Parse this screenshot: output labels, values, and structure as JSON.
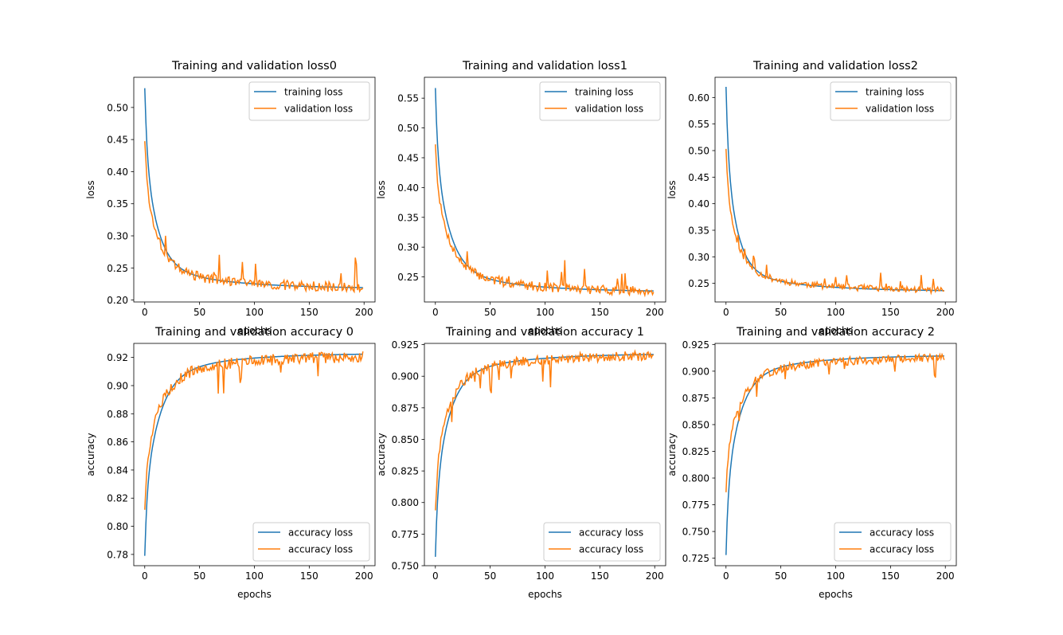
{
  "chart_data": [
    {
      "type": "line",
      "title": "Training and validation loss0",
      "xlabel": "epochs",
      "ylabel": "loss",
      "xlim": [
        -10,
        210
      ],
      "ylim": [
        0.197,
        0.547
      ],
      "xticks": [
        0,
        50,
        100,
        150,
        200
      ],
      "yticks": [
        0.2,
        0.25,
        0.3,
        0.35,
        0.4,
        0.45,
        0.5
      ],
      "ytick_decimals": 2,
      "legend_position": "top-right",
      "series": [
        {
          "name": "training loss",
          "color": "#1f77b4",
          "start": 0.53,
          "end": 0.218,
          "tau": 11,
          "bias": 0.038,
          "noise": 0
        },
        {
          "name": "validation loss",
          "color": "#ff7f0e",
          "start": 0.45,
          "end": 0.218,
          "tau": 11,
          "bias": 0.04,
          "noise": 0.008,
          "seed": 3
        }
      ]
    },
    {
      "type": "line",
      "title": "Training and validation loss1",
      "xlabel": "epochs",
      "ylabel": "loss",
      "xlim": [
        -10,
        210
      ],
      "ylim": [
        0.208,
        0.585
      ],
      "xticks": [
        0,
        50,
        100,
        150,
        200
      ],
      "yticks": [
        0.25,
        0.3,
        0.35,
        0.4,
        0.45,
        0.5,
        0.55
      ],
      "ytick_decimals": 2,
      "legend_position": "top-right",
      "series": [
        {
          "name": "training loss",
          "color": "#1f77b4",
          "start": 0.567,
          "end": 0.225,
          "tau": 12,
          "bias": 0.042,
          "noise": 0
        },
        {
          "name": "validation loss",
          "color": "#ff7f0e",
          "start": 0.475,
          "end": 0.225,
          "tau": 12,
          "bias": 0.044,
          "noise": 0.008,
          "seed": 7
        }
      ]
    },
    {
      "type": "line",
      "title": "Training and validation loss2",
      "xlabel": "epochs",
      "ylabel": "loss",
      "xlim": [
        -10,
        210
      ],
      "ylim": [
        0.215,
        0.638
      ],
      "xticks": [
        0,
        50,
        100,
        150,
        200
      ],
      "yticks": [
        0.25,
        0.3,
        0.35,
        0.4,
        0.45,
        0.5,
        0.55,
        0.6
      ],
      "ytick_decimals": 2,
      "legend_position": "top-right",
      "series": [
        {
          "name": "training loss",
          "color": "#1f77b4",
          "start": 0.62,
          "end": 0.235,
          "tau": 10,
          "bias": 0.04,
          "noise": 0
        },
        {
          "name": "validation loss",
          "color": "#ff7f0e",
          "start": 0.505,
          "end": 0.236,
          "tau": 10,
          "bias": 0.042,
          "noise": 0.006,
          "seed": 11
        }
      ]
    },
    {
      "type": "line",
      "title": "Training and validation accuracy 0",
      "xlabel": "epochs",
      "ylabel": "accuracy",
      "xlim": [
        -10,
        210
      ],
      "ylim": [
        0.772,
        0.93
      ],
      "xticks": [
        0,
        50,
        100,
        150,
        200
      ],
      "yticks": [
        0.78,
        0.8,
        0.82,
        0.84,
        0.86,
        0.88,
        0.9,
        0.92
      ],
      "ytick_decimals": 2,
      "legend_position": "bottom-right",
      "series": [
        {
          "name": "accuracy loss",
          "color": "#1f77b4",
          "start": 0.779,
          "end": 0.923,
          "tau": 13,
          "bias": -0.018,
          "noise": 0
        },
        {
          "name": "accuracy loss",
          "color": "#ff7f0e",
          "start": 0.813,
          "end": 0.921,
          "tau": 13,
          "bias": -0.018,
          "noise": 0.004,
          "seed": 5
        }
      ]
    },
    {
      "type": "line",
      "title": "Training and validation accuracy 1",
      "xlabel": "epochs",
      "ylabel": "accuracy",
      "xlim": [
        -10,
        210
      ],
      "ylim": [
        0.75,
        0.926
      ],
      "xticks": [
        0,
        50,
        100,
        150,
        200
      ],
      "yticks": [
        0.75,
        0.775,
        0.8,
        0.825,
        0.85,
        0.875,
        0.9,
        0.925
      ],
      "ytick_decimals": 3,
      "legend_position": "bottom-right",
      "series": [
        {
          "name": "accuracy loss",
          "color": "#1f77b4",
          "start": 0.757,
          "end": 0.918,
          "tau": 12,
          "bias": -0.02,
          "noise": 0
        },
        {
          "name": "accuracy loss",
          "color": "#ff7f0e",
          "start": 0.795,
          "end": 0.917,
          "tau": 12,
          "bias": -0.02,
          "noise": 0.004,
          "seed": 9
        }
      ]
    },
    {
      "type": "line",
      "title": "Training and validation accuracy 2",
      "xlabel": "epochs",
      "ylabel": "accuracy",
      "xlim": [
        -10,
        210
      ],
      "ylim": [
        0.718,
        0.926
      ],
      "xticks": [
        0,
        50,
        100,
        150,
        200
      ],
      "yticks": [
        0.725,
        0.75,
        0.775,
        0.8,
        0.825,
        0.85,
        0.875,
        0.9,
        0.925
      ],
      "ytick_decimals": 3,
      "legend_position": "bottom-right",
      "series": [
        {
          "name": "accuracy loss",
          "color": "#1f77b4",
          "start": 0.728,
          "end": 0.915,
          "tau": 12,
          "bias": -0.022,
          "noise": 0
        },
        {
          "name": "accuracy loss",
          "color": "#ff7f0e",
          "start": 0.788,
          "end": 0.913,
          "tau": 12,
          "bias": -0.022,
          "noise": 0.004,
          "seed": 13
        }
      ]
    }
  ]
}
